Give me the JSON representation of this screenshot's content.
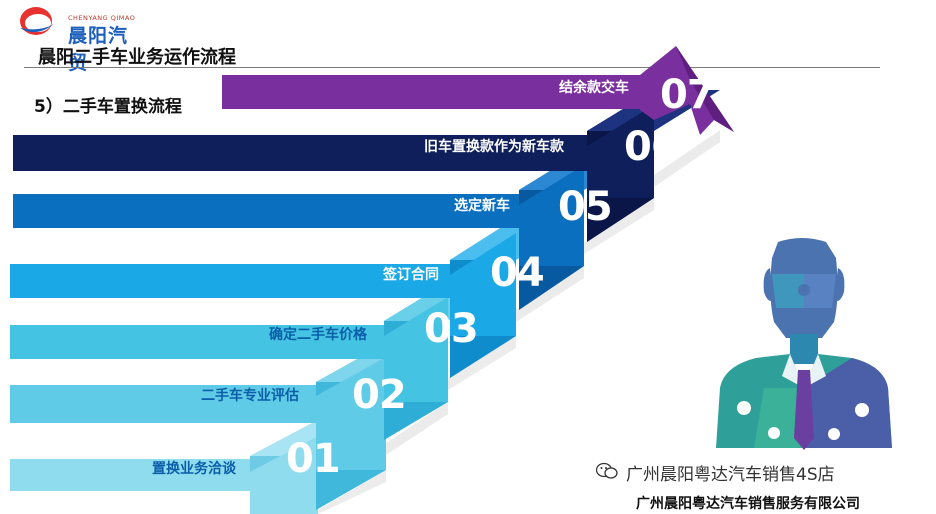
{
  "header": {
    "logo_cn": "晨阳汽贸",
    "logo_en": "CHENYANG QIMAO",
    "page_title": "晨阳二手车业务运作流程",
    "section_title": "5）二手车置换流程"
  },
  "steps": [
    {
      "num": "01",
      "label": "置换业务洽谈"
    },
    {
      "num": "02",
      "label": "二手车专业评估"
    },
    {
      "num": "03",
      "label": "确定二手车价格"
    },
    {
      "num": "04",
      "label": "签订合同"
    },
    {
      "num": "05",
      "label": "选定新车"
    },
    {
      "num": "06",
      "label": "旧车置换款作为新车款"
    },
    {
      "num": "07",
      "label": "结余款交车"
    }
  ],
  "footer": {
    "watermark": "广州晨阳粤达汽车销售4S店",
    "company": "广州晨阳粤达汽车销售服务有限公司"
  },
  "colors": {
    "step1": "#8fdcef",
    "step2": "#5fcbe6",
    "step3": "#44c3e3",
    "step4": "#1aa9e6",
    "step5": "#0b6fc0",
    "step6": "#0e1f5c",
    "step7": "#7a2f9e"
  }
}
